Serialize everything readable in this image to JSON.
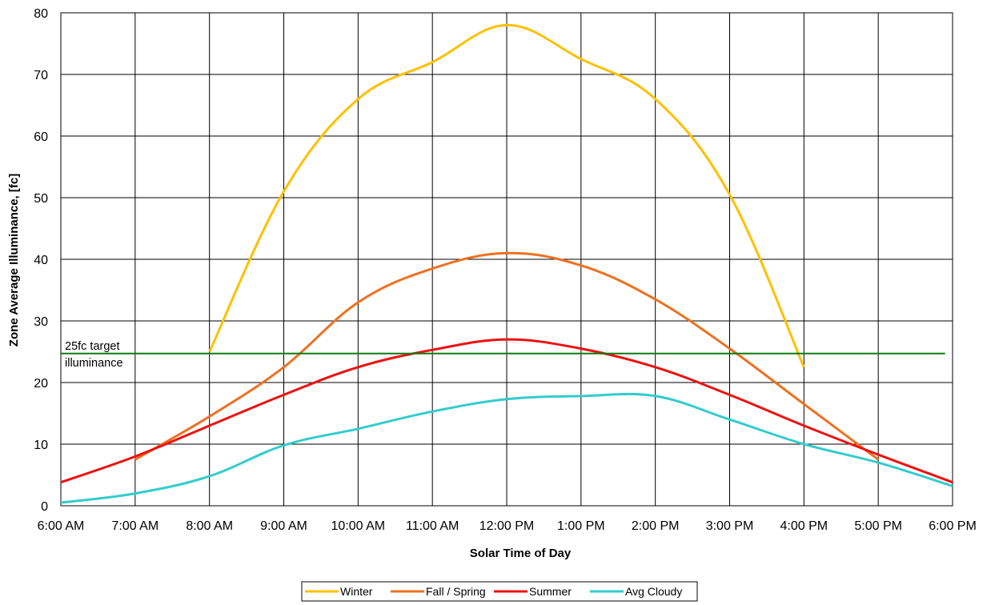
{
  "chart_data": {
    "type": "line",
    "title": "",
    "xlabel": "Solar Time of Day",
    "ylabel": "Zone Average Illuminance, [fc]",
    "x_hours": [
      6,
      7,
      8,
      9,
      10,
      11,
      12,
      13,
      14,
      15,
      16,
      17,
      18
    ],
    "x_tick_labels": [
      "6:00 AM",
      "7:00 AM",
      "8:00 AM",
      "9:00 AM",
      "10:00 AM",
      "11:00 AM",
      "12:00 PM",
      "1:00 PM",
      "2:00 PM",
      "3:00 PM",
      "4:00 PM",
      "5:00 PM",
      "6:00 PM"
    ],
    "xlim": [
      6,
      18
    ],
    "ylim": [
      0,
      80
    ],
    "y_ticks": [
      0,
      10,
      20,
      30,
      40,
      50,
      60,
      70,
      80
    ],
    "grid": true,
    "legend_position": "bottom",
    "series": [
      {
        "name": "Winter",
        "color": "#FFC000",
        "points": [
          [
            8,
            25
          ],
          [
            9,
            51
          ],
          [
            10,
            66
          ],
          [
            11,
            72
          ],
          [
            12,
            78
          ],
          [
            13,
            72.5
          ],
          [
            14,
            66
          ],
          [
            15,
            50.5
          ],
          [
            16,
            22.5
          ]
        ]
      },
      {
        "name": "Fall / Spring",
        "color": "#F07020",
        "points": [
          [
            7,
            7.5
          ],
          [
            8,
            14.5
          ],
          [
            9,
            22.5
          ],
          [
            10,
            33
          ],
          [
            11,
            38.5
          ],
          [
            12,
            41
          ],
          [
            13,
            39
          ],
          [
            14,
            33.5
          ],
          [
            15,
            25.5
          ],
          [
            16,
            16.5
          ],
          [
            17,
            7.5
          ]
        ]
      },
      {
        "name": "Summer",
        "color": "#EE1111",
        "points": [
          [
            6,
            3.8
          ],
          [
            7,
            8
          ],
          [
            8,
            13
          ],
          [
            9,
            18
          ],
          [
            10,
            22.5
          ],
          [
            11,
            25.3
          ],
          [
            12,
            27
          ],
          [
            13,
            25.5
          ],
          [
            14,
            22.5
          ],
          [
            15,
            18
          ],
          [
            16,
            13
          ],
          [
            17,
            8.3
          ],
          [
            18,
            3.8
          ]
        ]
      },
      {
        "name": "Avg Cloudy",
        "color": "#33CCCC",
        "points": [
          [
            6,
            0.5
          ],
          [
            7,
            2
          ],
          [
            8,
            4.8
          ],
          [
            9,
            9.8
          ],
          [
            10,
            12.5
          ],
          [
            11,
            15.3
          ],
          [
            12,
            17.3
          ],
          [
            13,
            17.8
          ],
          [
            14,
            17.8
          ],
          [
            15,
            14
          ],
          [
            16,
            10
          ],
          [
            17,
            7
          ],
          [
            18,
            3.2
          ]
        ]
      }
    ],
    "target_line": {
      "value": 24.7,
      "color": "#0A7A0A",
      "x_start": 6,
      "x_end": 17.9,
      "label_line1": "25fc target",
      "label_line2": "illuminance"
    }
  }
}
